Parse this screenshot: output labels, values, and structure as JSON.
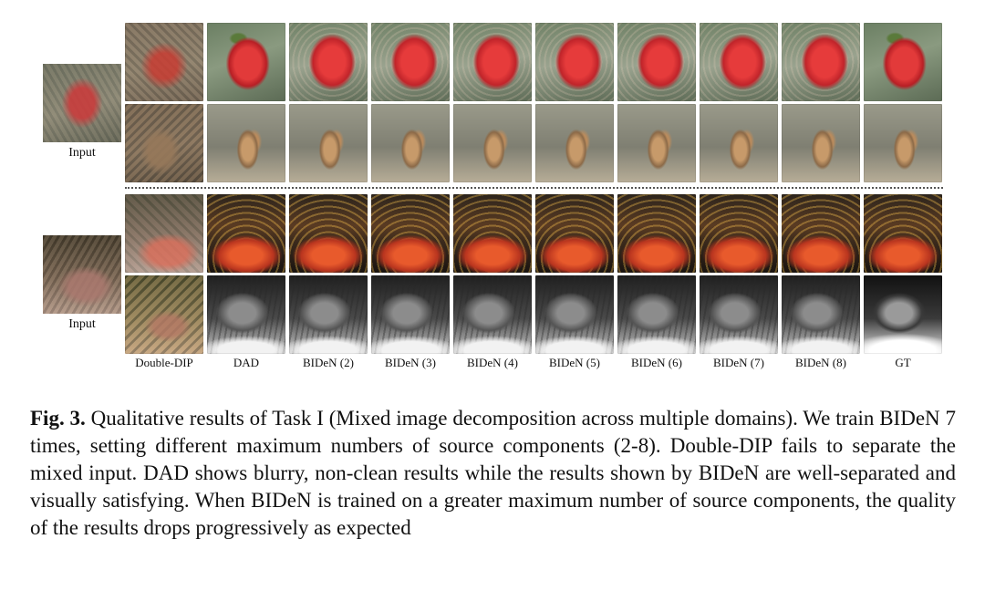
{
  "figure": {
    "input_label_top": "Input",
    "input_label_bottom": "Input",
    "column_labels": [
      "Double-DIP",
      "DAD",
      "BIDeN (2)",
      "BIDeN (3)",
      "BIDeN (4)",
      "BIDeN (5)",
      "BIDeN (6)",
      "BIDeN (7)",
      "BIDeN (8)",
      "GT"
    ]
  },
  "caption": {
    "label": "Fig. 3.",
    "text": " Qualitative results of Task I (Mixed image decomposition across multiple domains). We train BIDeN 7 times, setting different maximum numbers of source components (2-8). Double-DIP fails to separate the mixed input. DAD shows blurry, non-clean results while the results shown by BIDeN are well-separated and visually satisfying. When BIDeN is trained on a greater maximum number of source components, the quality of the results drops progressively as expected"
  }
}
